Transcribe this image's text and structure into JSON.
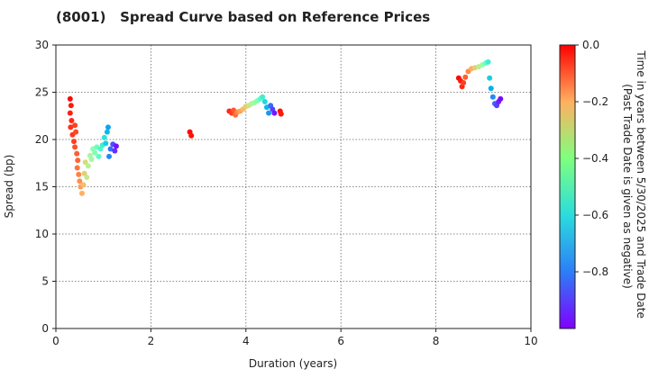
{
  "title": "(8001)   Spread Curve based on Reference Prices",
  "chart_data": {
    "type": "scatter",
    "title": "(8001)   Spread Curve based on Reference Prices",
    "xlabel": "Duration (years)",
    "ylabel": "Spread (bp)",
    "xlim": [
      0,
      10
    ],
    "ylim": [
      0,
      30
    ],
    "xticks": [
      "0",
      "2",
      "4",
      "6",
      "8",
      "10"
    ],
    "yticks": [
      "0",
      "5",
      "10",
      "15",
      "20",
      "25",
      "30"
    ],
    "grid": true,
    "colorbar": {
      "label": "Time in years between 5/30/2025 and Trade Date\n(Past Trade Date is given as negative)",
      "range": [
        -1.0,
        0.0
      ],
      "ticks": [
        "0.0",
        "−0.2",
        "−0.4",
        "−0.6",
        "−0.8"
      ],
      "colormap": "rainbow"
    },
    "points": [
      {
        "x": 0.3,
        "y": 24.3,
        "t": -0.01
      },
      {
        "x": 0.32,
        "y": 23.6,
        "t": -0.03
      },
      {
        "x": 0.3,
        "y": 22.8,
        "t": -0.04
      },
      {
        "x": 0.33,
        "y": 22.0,
        "t": -0.05
      },
      {
        "x": 0.31,
        "y": 21.3,
        "t": -0.06
      },
      {
        "x": 0.35,
        "y": 20.5,
        "t": -0.07
      },
      {
        "x": 0.38,
        "y": 19.8,
        "t": -0.08
      },
      {
        "x": 0.4,
        "y": 21.5,
        "t": -0.08
      },
      {
        "x": 0.42,
        "y": 20.8,
        "t": -0.09
      },
      {
        "x": 0.4,
        "y": 19.2,
        "t": -0.1
      },
      {
        "x": 0.44,
        "y": 18.5,
        "t": -0.12
      },
      {
        "x": 0.46,
        "y": 17.8,
        "t": -0.13
      },
      {
        "x": 0.45,
        "y": 17.0,
        "t": -0.15
      },
      {
        "x": 0.48,
        "y": 16.3,
        "t": -0.17
      },
      {
        "x": 0.5,
        "y": 15.6,
        "t": -0.19
      },
      {
        "x": 0.52,
        "y": 15.0,
        "t": -0.21
      },
      {
        "x": 0.55,
        "y": 14.3,
        "t": -0.24
      },
      {
        "x": 0.58,
        "y": 15.2,
        "t": -0.27
      },
      {
        "x": 0.6,
        "y": 16.4,
        "t": -0.3
      },
      {
        "x": 0.62,
        "y": 17.6,
        "t": -0.33
      },
      {
        "x": 0.65,
        "y": 16.0,
        "t": -0.36
      },
      {
        "x": 0.68,
        "y": 17.2,
        "t": -0.39
      },
      {
        "x": 0.72,
        "y": 18.3,
        "t": -0.42
      },
      {
        "x": 0.75,
        "y": 17.9,
        "t": -0.44
      },
      {
        "x": 0.78,
        "y": 19.0,
        "t": -0.47
      },
      {
        "x": 0.82,
        "y": 18.6,
        "t": -0.5
      },
      {
        "x": 0.86,
        "y": 19.2,
        "t": -0.53
      },
      {
        "x": 0.9,
        "y": 18.2,
        "t": -0.56
      },
      {
        "x": 0.94,
        "y": 19.0,
        "t": -0.59
      },
      {
        "x": 0.98,
        "y": 19.4,
        "t": -0.62
      },
      {
        "x": 1.02,
        "y": 20.2,
        "t": -0.66
      },
      {
        "x": 1.05,
        "y": 19.6,
        "t": -0.7
      },
      {
        "x": 1.08,
        "y": 20.8,
        "t": -0.74
      },
      {
        "x": 1.1,
        "y": 21.3,
        "t": -0.78
      },
      {
        "x": 1.12,
        "y": 18.2,
        "t": -0.82
      },
      {
        "x": 1.15,
        "y": 19.0,
        "t": -0.86
      },
      {
        "x": 1.2,
        "y": 19.5,
        "t": -0.9
      },
      {
        "x": 1.24,
        "y": 18.8,
        "t": -0.94
      },
      {
        "x": 1.27,
        "y": 19.3,
        "t": -0.98
      },
      {
        "x": 2.82,
        "y": 20.8,
        "t": -0.01
      },
      {
        "x": 2.85,
        "y": 20.4,
        "t": -0.02
      },
      {
        "x": 3.65,
        "y": 23.0,
        "t": -0.05
      },
      {
        "x": 3.7,
        "y": 22.8,
        "t": -0.08
      },
      {
        "x": 3.74,
        "y": 23.1,
        "t": -0.11
      },
      {
        "x": 3.78,
        "y": 22.6,
        "t": -0.14
      },
      {
        "x": 3.82,
        "y": 22.9,
        "t": -0.18
      },
      {
        "x": 3.88,
        "y": 23.0,
        "t": -0.22
      },
      {
        "x": 3.94,
        "y": 23.2,
        "t": -0.26
      },
      {
        "x": 4.0,
        "y": 23.5,
        "t": -0.3
      },
      {
        "x": 4.06,
        "y": 23.6,
        "t": -0.35
      },
      {
        "x": 4.12,
        "y": 23.8,
        "t": -0.4
      },
      {
        "x": 4.18,
        "y": 23.9,
        "t": -0.45
      },
      {
        "x": 4.24,
        "y": 24.1,
        "t": -0.5
      },
      {
        "x": 4.3,
        "y": 24.3,
        "t": -0.56
      },
      {
        "x": 4.35,
        "y": 24.5,
        "t": -0.62
      },
      {
        "x": 4.4,
        "y": 24.0,
        "t": -0.68
      },
      {
        "x": 4.44,
        "y": 23.4,
        "t": -0.74
      },
      {
        "x": 4.48,
        "y": 22.8,
        "t": -0.8
      },
      {
        "x": 4.52,
        "y": 23.6,
        "t": -0.86
      },
      {
        "x": 4.56,
        "y": 23.2,
        "t": -0.92
      },
      {
        "x": 4.6,
        "y": 22.8,
        "t": -0.97
      },
      {
        "x": 4.72,
        "y": 23.0,
        "t": -0.02
      },
      {
        "x": 4.74,
        "y": 22.7,
        "t": -0.03
      },
      {
        "x": 8.48,
        "y": 26.5,
        "t": -0.01
      },
      {
        "x": 8.52,
        "y": 26.2,
        "t": -0.03
      },
      {
        "x": 8.55,
        "y": 25.6,
        "t": -0.05
      },
      {
        "x": 8.58,
        "y": 26.0,
        "t": -0.08
      },
      {
        "x": 8.62,
        "y": 26.6,
        "t": -0.12
      },
      {
        "x": 8.68,
        "y": 27.2,
        "t": -0.18
      },
      {
        "x": 8.75,
        "y": 27.5,
        "t": -0.24
      },
      {
        "x": 8.82,
        "y": 27.6,
        "t": -0.3
      },
      {
        "x": 8.9,
        "y": 27.7,
        "t": -0.38
      },
      {
        "x": 8.98,
        "y": 27.9,
        "t": -0.46
      },
      {
        "x": 9.05,
        "y": 28.1,
        "t": -0.54
      },
      {
        "x": 9.1,
        "y": 28.2,
        "t": -0.62
      },
      {
        "x": 9.13,
        "y": 26.5,
        "t": -0.7
      },
      {
        "x": 9.16,
        "y": 25.4,
        "t": -0.76
      },
      {
        "x": 9.2,
        "y": 24.5,
        "t": -0.82
      },
      {
        "x": 9.24,
        "y": 23.8,
        "t": -0.87
      },
      {
        "x": 9.28,
        "y": 23.6,
        "t": -0.92
      },
      {
        "x": 9.32,
        "y": 24.0,
        "t": -0.96
      },
      {
        "x": 9.36,
        "y": 24.3,
        "t": -0.99
      }
    ]
  }
}
